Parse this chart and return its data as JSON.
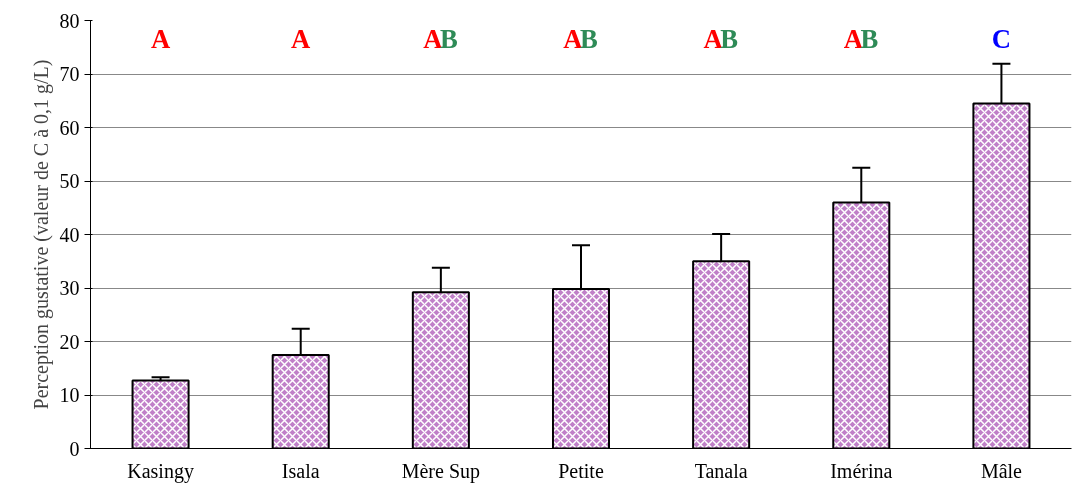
{
  "chart_data": {
    "type": "bar",
    "ylabel": "Perception gustative (valeur de C à 0,1 g/L)",
    "categories": [
      "Kasingy",
      "Isala",
      "Mère Sup",
      "Petite",
      "Tanala",
      "Imérina",
      "Mâle"
    ],
    "values": [
      12.7,
      17.5,
      29.2,
      29.8,
      35.0,
      46.0,
      64.5
    ],
    "errors": [
      0.6,
      4.9,
      4.6,
      8.2,
      5.1,
      6.5,
      7.4
    ],
    "color": "#c080c8",
    "ylim": [
      0,
      80
    ],
    "yticks": [
      0,
      10,
      20,
      30,
      40,
      50,
      60,
      70,
      80
    ],
    "grid": "y",
    "annotations": [
      "A",
      "A",
      "AB",
      "AB",
      "AB",
      "AB",
      "C"
    ]
  }
}
